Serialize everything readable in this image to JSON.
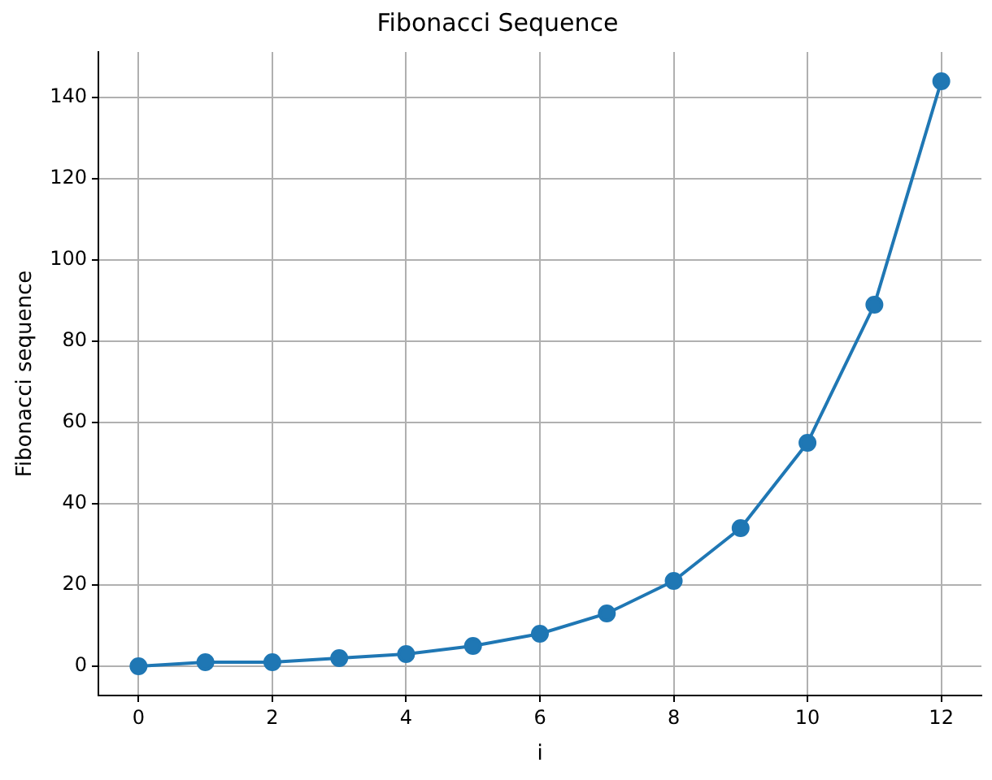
{
  "chart_data": {
    "type": "line",
    "title": "Fibonacci Sequence",
    "xlabel": "i",
    "ylabel": "Fibonacci sequence",
    "x": [
      0,
      1,
      2,
      3,
      4,
      5,
      6,
      7,
      8,
      9,
      10,
      11,
      12
    ],
    "series": [
      {
        "color": "#1f77b4",
        "values": [
          0,
          1,
          1,
          2,
          3,
          5,
          8,
          13,
          21,
          34,
          55,
          89,
          144
        ]
      }
    ],
    "xlim": [
      -0.6,
      12.6
    ],
    "xticks": [
      0,
      2,
      4,
      6,
      8,
      10,
      12
    ],
    "ylim": [
      -7.2,
      151.2
    ],
    "yticks": [
      0,
      20,
      40,
      60,
      80,
      100,
      120,
      140
    ],
    "grid": true,
    "marker": "circle",
    "line_style": "solid"
  }
}
